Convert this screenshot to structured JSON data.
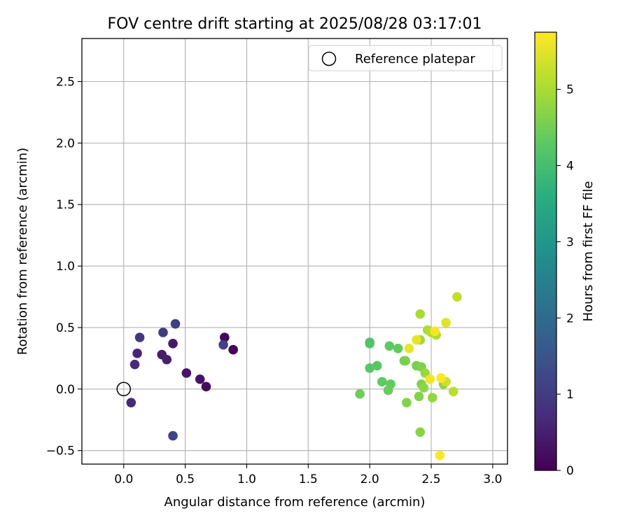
{
  "chart_data": {
    "type": "scatter",
    "title": "FOV centre drift starting at 2025/08/28 03:17:01",
    "xlabel": "Angular distance from reference (arcmin)",
    "ylabel": "Rotation from reference (arcmin)",
    "xlim": [
      -0.34,
      3.12
    ],
    "ylim": [
      -0.61,
      2.85
    ],
    "xticks": [
      0.0,
      0.5,
      1.0,
      1.5,
      2.0,
      2.5,
      3.0
    ],
    "xtick_labels": [
      "0.0",
      "0.5",
      "1.0",
      "1.5",
      "2.0",
      "2.5",
      "3.0"
    ],
    "yticks": [
      -0.5,
      0.0,
      0.5,
      1.0,
      1.5,
      2.0,
      2.5
    ],
    "ytick_labels": [
      "−0.5",
      "0.0",
      "0.5",
      "1.0",
      "1.5",
      "2.0",
      "2.5"
    ],
    "grid": true,
    "legend": {
      "placement": "top-right",
      "entries": [
        "Reference platepar"
      ]
    },
    "reference_point": {
      "x": 0.0,
      "y": 0.0
    },
    "colorbar": {
      "label": "Hours from first FF file",
      "colormap": "viridis",
      "range": [
        0,
        5.75
      ],
      "ticks": [
        0,
        1,
        2,
        3,
        4,
        5
      ],
      "tick_labels": [
        "0",
        "1",
        "2",
        "3",
        "4",
        "5"
      ]
    },
    "points": [
      {
        "x": 0.89,
        "y": 0.32,
        "c": 0.05
      },
      {
        "x": 0.82,
        "y": 0.42,
        "c": 0.1
      },
      {
        "x": 0.67,
        "y": 0.02,
        "c": 0.2
      },
      {
        "x": 0.62,
        "y": 0.08,
        "c": 0.3
      },
      {
        "x": 0.51,
        "y": 0.13,
        "c": 0.35
      },
      {
        "x": 0.4,
        "y": 0.37,
        "c": 0.4
      },
      {
        "x": 0.31,
        "y": 0.28,
        "c": 0.45
      },
      {
        "x": 0.35,
        "y": 0.24,
        "c": 0.5
      },
      {
        "x": 0.11,
        "y": 0.29,
        "c": 0.6
      },
      {
        "x": 0.09,
        "y": 0.2,
        "c": 0.7
      },
      {
        "x": 0.06,
        "y": -0.11,
        "c": 0.65
      },
      {
        "x": 0.13,
        "y": 0.42,
        "c": 0.95
      },
      {
        "x": 0.32,
        "y": 0.46,
        "c": 1.0
      },
      {
        "x": 0.42,
        "y": 0.53,
        "c": 1.05
      },
      {
        "x": 0.81,
        "y": 0.36,
        "c": 1.1
      },
      {
        "x": 0.4,
        "y": -0.38,
        "c": 1.15
      },
      {
        "x": 2.0,
        "y": 0.38,
        "c": 4.1
      },
      {
        "x": 2.0,
        "y": 0.37,
        "c": 4.15
      },
      {
        "x": 2.0,
        "y": 0.17,
        "c": 4.2
      },
      {
        "x": 2.06,
        "y": 0.19,
        "c": 4.25
      },
      {
        "x": 2.16,
        "y": 0.35,
        "c": 4.3
      },
      {
        "x": 2.23,
        "y": 0.33,
        "c": 4.35
      },
      {
        "x": 2.1,
        "y": 0.06,
        "c": 4.3
      },
      {
        "x": 2.17,
        "y": 0.04,
        "c": 4.35
      },
      {
        "x": 2.15,
        "y": -0.01,
        "c": 4.4
      },
      {
        "x": 1.92,
        "y": -0.04,
        "c": 4.45
      },
      {
        "x": 2.28,
        "y": 0.23,
        "c": 4.5
      },
      {
        "x": 2.29,
        "y": 0.23,
        "c": 4.55
      },
      {
        "x": 2.38,
        "y": 0.19,
        "c": 4.55
      },
      {
        "x": 2.42,
        "y": 0.18,
        "c": 4.6
      },
      {
        "x": 2.3,
        "y": -0.11,
        "c": 4.65
      },
      {
        "x": 2.4,
        "y": -0.06,
        "c": 4.65
      },
      {
        "x": 2.41,
        "y": -0.35,
        "c": 4.7
      },
      {
        "x": 2.42,
        "y": 0.04,
        "c": 4.6
      },
      {
        "x": 2.44,
        "y": 0.01,
        "c": 4.75
      },
      {
        "x": 2.45,
        "y": 0.13,
        "c": 4.85
      },
      {
        "x": 2.51,
        "y": -0.07,
        "c": 4.8
      },
      {
        "x": 2.6,
        "y": 0.04,
        "c": 4.75
      },
      {
        "x": 2.41,
        "y": 0.4,
        "c": 4.9
      },
      {
        "x": 2.41,
        "y": 0.61,
        "c": 5.0
      },
      {
        "x": 2.47,
        "y": 0.48,
        "c": 5.05
      },
      {
        "x": 2.54,
        "y": 0.44,
        "c": 5.05
      },
      {
        "x": 2.5,
        "y": 0.46,
        "c": 5.1
      },
      {
        "x": 2.68,
        "y": -0.02,
        "c": 5.15
      },
      {
        "x": 2.71,
        "y": 0.75,
        "c": 5.2
      },
      {
        "x": 2.62,
        "y": 0.06,
        "c": 5.3
      },
      {
        "x": 2.38,
        "y": 0.4,
        "c": 5.55
      },
      {
        "x": 2.32,
        "y": 0.33,
        "c": 5.6
      },
      {
        "x": 2.49,
        "y": 0.08,
        "c": 5.65
      },
      {
        "x": 2.53,
        "y": 0.47,
        "c": 5.7
      },
      {
        "x": 2.62,
        "y": 0.54,
        "c": 5.5
      },
      {
        "x": 2.58,
        "y": 0.09,
        "c": 5.75
      },
      {
        "x": 2.57,
        "y": -0.54,
        "c": 5.75
      }
    ]
  }
}
